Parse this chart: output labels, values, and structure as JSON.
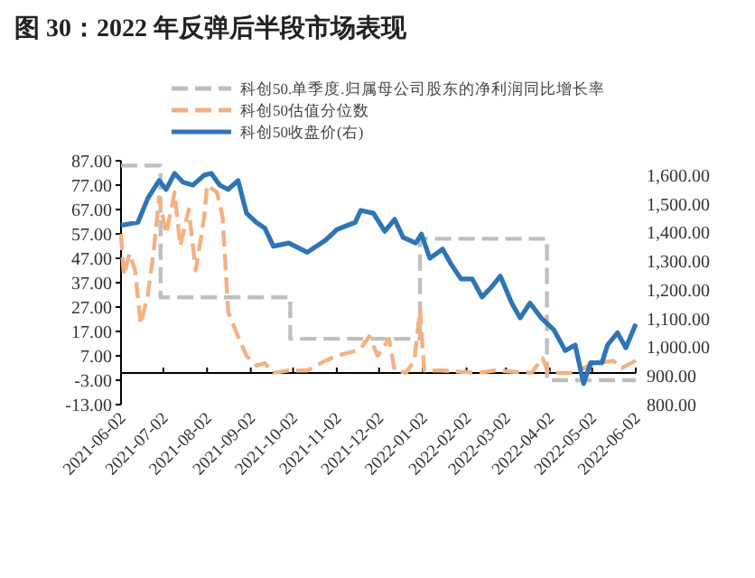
{
  "chart_data": {
    "type": "line",
    "title": "图 30：2022 年反弹后半段市场表现",
    "xlim": [
      "2021-06-02",
      "2022-06-02"
    ],
    "xticks": [
      "2021-06-02",
      "2021-07-02",
      "2021-08-02",
      "2021-09-02",
      "2021-10-02",
      "2021-11-02",
      "2021-12-02",
      "2022-01-02",
      "2022-02-02",
      "2022-03-02",
      "2022-04-02",
      "2022-05-02",
      "2022-06-02"
    ],
    "ylim": [
      -13,
      87
    ],
    "yticks": [
      {
        "value": 87,
        "label": "87.00"
      },
      {
        "value": 77,
        "label": "77.00"
      },
      {
        "value": 67,
        "label": "67.00"
      },
      {
        "value": 57,
        "label": "57.00"
      },
      {
        "value": 47,
        "label": "47.00"
      },
      {
        "value": 37,
        "label": "37.00"
      },
      {
        "value": 27,
        "label": "27.00"
      },
      {
        "value": 17,
        "label": "17.00"
      },
      {
        "value": 7,
        "label": "7.00"
      },
      {
        "value": -3,
        "label": "-3.00"
      },
      {
        "value": -13,
        "label": "-13.00"
      }
    ],
    "y2lim": [
      800,
      1650
    ],
    "y2ticks": [
      {
        "value": 1600,
        "label": "1,600.00"
      },
      {
        "value": 1500,
        "label": "1,500.00"
      },
      {
        "value": 1400,
        "label": "1,400.00"
      },
      {
        "value": 1300,
        "label": "1,300.00"
      },
      {
        "value": 1200,
        "label": "1,200.00"
      },
      {
        "value": 1100,
        "label": "1,100.00"
      },
      {
        "value": 1000,
        "label": "1,000.00"
      },
      {
        "value": 900,
        "label": "900.00"
      },
      {
        "value": 800,
        "label": "800.00"
      }
    ],
    "grid": false,
    "legend": "top",
    "series": [
      {
        "name": "科创50.单季度.归属母公司股东的净利润同比增长率",
        "type": "step",
        "color": "#bfbfbf",
        "line_style": "dashed",
        "x": [
          "2021-06-02",
          "2021-06-30",
          "2021-09-30",
          "2021-12-31",
          "2022-03-31",
          "2022-06-02"
        ],
        "values": [
          85,
          31,
          14,
          55,
          -3,
          -3
        ]
      },
      {
        "name": "科创50估值分位数",
        "color": "#f4b183",
        "line_style": "dashed",
        "x": [
          "2021-06-02",
          "2021-06-04",
          "2021-06-08",
          "2021-06-12",
          "2021-06-16",
          "2021-06-21",
          "2021-06-25",
          "2021-06-29",
          "2021-07-04",
          "2021-07-10",
          "2021-07-14",
          "2021-07-20",
          "2021-07-25",
          "2021-07-31",
          "2021-08-02",
          "2021-08-09",
          "2021-08-13",
          "2021-08-17",
          "2021-08-24",
          "2021-08-30",
          "2021-09-06",
          "2021-09-12",
          "2021-09-18",
          "2021-09-29",
          "2021-10-12",
          "2021-10-25",
          "2021-11-02",
          "2021-11-15",
          "2021-11-19",
          "2021-11-25",
          "2021-12-01",
          "2021-12-09",
          "2021-12-13",
          "2021-12-21",
          "2021-12-27",
          "2021-12-31",
          "2022-01-03",
          "2022-01-15",
          "2022-02-10",
          "2022-02-22",
          "2022-03-20",
          "2022-03-28",
          "2022-04-01",
          "2022-04-18",
          "2022-05-04",
          "2022-05-17",
          "2022-05-23",
          "2022-06-02"
        ],
        "values": [
          57,
          40,
          49,
          42,
          20,
          32,
          49,
          72,
          57,
          74,
          52,
          67,
          42,
          64,
          77,
          74,
          64,
          25,
          15,
          7,
          3,
          4,
          0,
          1,
          1,
          5,
          7,
          9,
          10,
          15,
          7,
          14,
          1,
          0,
          5,
          26,
          1,
          1,
          0,
          1,
          0,
          6,
          0,
          0,
          4,
          5,
          2,
          5
        ]
      },
      {
        "name": "科创50收盘价(右)",
        "axis": "y2",
        "color": "#2e75b6",
        "line_style": "solid",
        "x": [
          "2021-06-02",
          "2021-06-14",
          "2021-06-21",
          "2021-06-29",
          "2021-07-04",
          "2021-07-10",
          "2021-07-16",
          "2021-07-23",
          "2021-07-31",
          "2021-08-05",
          "2021-08-11",
          "2021-08-17",
          "2021-08-24",
          "2021-08-30",
          "2021-09-06",
          "2021-09-12",
          "2021-09-18",
          "2021-09-29",
          "2021-10-12",
          "2021-10-25",
          "2021-11-02",
          "2021-11-15",
          "2021-11-19",
          "2021-11-28",
          "2021-12-06",
          "2021-12-13",
          "2021-12-19",
          "2021-12-28",
          "2022-01-01",
          "2022-01-07",
          "2022-01-16",
          "2022-01-22",
          "2022-01-29",
          "2022-02-06",
          "2022-02-13",
          "2022-02-19",
          "2022-02-26",
          "2022-03-06",
          "2022-03-12",
          "2022-03-19",
          "2022-03-27",
          "2022-04-05",
          "2022-04-13",
          "2022-04-20",
          "2022-04-26",
          "2022-05-01",
          "2022-05-09",
          "2022-05-13",
          "2022-05-20",
          "2022-05-26",
          "2022-06-02"
        ],
        "values": [
          1425,
          1435,
          1519,
          1581,
          1550,
          1606,
          1575,
          1565,
          1600,
          1606,
          1565,
          1550,
          1581,
          1467,
          1435,
          1415,
          1352,
          1363,
          1331,
          1373,
          1410,
          1435,
          1477,
          1467,
          1404,
          1446,
          1383,
          1363,
          1394,
          1310,
          1342,
          1290,
          1238,
          1238,
          1175,
          1206,
          1248,
          1154,
          1102,
          1154,
          1102,
          1060,
          988,
          1008,
          873,
          946,
          946,
          1008,
          1050,
          998,
          1081
        ]
      }
    ]
  }
}
